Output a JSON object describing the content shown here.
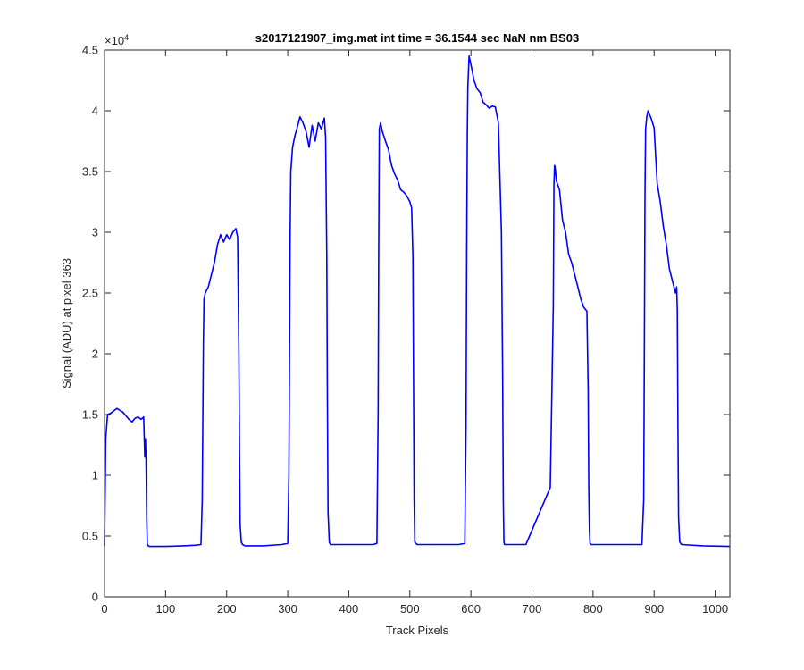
{
  "chart_data": {
    "type": "line",
    "title": "s2017121907_img.mat int time = 36.1544 sec  NaN nm BS03",
    "xlabel": "Track Pixels",
    "ylabel": "Signal (ADU) at pixel 363",
    "xlim": [
      0,
      1024
    ],
    "ylim": [
      0,
      45000
    ],
    "y_exponent_label": "×10",
    "y_exponent_power": "4",
    "xticks": [
      0,
      100,
      200,
      300,
      400,
      500,
      600,
      700,
      800,
      900,
      1000
    ],
    "xtick_labels": [
      "0",
      "100",
      "200",
      "300",
      "400",
      "500",
      "600",
      "700",
      "800",
      "900",
      "1000"
    ],
    "yticks": [
      0,
      5000,
      10000,
      15000,
      20000,
      25000,
      30000,
      35000,
      40000,
      45000
    ],
    "ytick_labels": [
      "0",
      "0.5",
      "1",
      "1.5",
      "2",
      "2.5",
      "3",
      "3.5",
      "4",
      "4.5"
    ],
    "grid": false,
    "series": [
      {
        "color": "#0000ff",
        "x": [
          0,
          2,
          5,
          10,
          20,
          30,
          40,
          45,
          50,
          55,
          60,
          64,
          66,
          67,
          68,
          69,
          70,
          72,
          74,
          80,
          100,
          130,
          150,
          158,
          160,
          161,
          162,
          163,
          165,
          170,
          175,
          180,
          185,
          190,
          195,
          200,
          205,
          210,
          215,
          218,
          220,
          221,
          222,
          224,
          226,
          230,
          260,
          290,
          300,
          302,
          303,
          304,
          305,
          308,
          312,
          315,
          320,
          325,
          330,
          335,
          340,
          345,
          350,
          355,
          360,
          362,
          364,
          365,
          366,
          368,
          370,
          400,
          440,
          446,
          448,
          449,
          450,
          452,
          455,
          460,
          465,
          470,
          475,
          480,
          485,
          490,
          495,
          500,
          503,
          505,
          506,
          507,
          508,
          510,
          512,
          540,
          580,
          590,
          592,
          593,
          594,
          595,
          597,
          600,
          605,
          610,
          615,
          620,
          625,
          630,
          635,
          640,
          645,
          650,
          652,
          653,
          654,
          655,
          657,
          660,
          690,
          730,
          735,
          736,
          737,
          738,
          740,
          745,
          750,
          755,
          760,
          765,
          770,
          775,
          780,
          785,
          790,
          792,
          793,
          794,
          795,
          797,
          800,
          840,
          880,
          883,
          884,
          885,
          886,
          888,
          890,
          895,
          900,
          905,
          910,
          915,
          920,
          925,
          930,
          935,
          937,
          938,
          939,
          940,
          942,
          945,
          980,
          1024
        ],
        "y": [
          4200,
          13000,
          15000,
          15100,
          15500,
          15200,
          14600,
          14400,
          14700,
          14800,
          14600,
          14800,
          11500,
          13000,
          11200,
          6500,
          4300,
          4200,
          4150,
          4150,
          4150,
          4200,
          4250,
          4300,
          8000,
          15000,
          21000,
          24500,
          25000,
          25500,
          26500,
          27500,
          29000,
          29800,
          29200,
          29800,
          29400,
          30000,
          30300,
          29600,
          20000,
          12000,
          6000,
          4500,
          4300,
          4200,
          4200,
          4300,
          4400,
          10000,
          20000,
          30000,
          35000,
          37000,
          38000,
          38500,
          39500,
          39000,
          38300,
          37000,
          38800,
          37500,
          39000,
          38500,
          39400,
          37800,
          28000,
          16000,
          7000,
          4500,
          4300,
          4300,
          4300,
          4400,
          15000,
          28000,
          38500,
          39000,
          38300,
          37500,
          36800,
          35500,
          34800,
          34300,
          33500,
          33300,
          33000,
          32500,
          32000,
          28000,
          18000,
          8000,
          4500,
          4400,
          4300,
          4300,
          4300,
          4400,
          14000,
          28000,
          38000,
          42000,
          44500,
          43800,
          42500,
          41800,
          41500,
          40700,
          40500,
          40200,
          40400,
          40300,
          39000,
          30000,
          18000,
          8000,
          4500,
          4300,
          4300,
          4300,
          4300,
          9000,
          24000,
          34000,
          35500,
          35300,
          34200,
          33500,
          31000,
          30000,
          28200,
          27500,
          26500,
          25500,
          24500,
          23800,
          23500,
          17000,
          9000,
          5500,
          4400,
          4300,
          4300,
          4300,
          4300,
          8000,
          20000,
          33000,
          38500,
          39500,
          40000,
          39400,
          38600,
          34000,
          32500,
          30500,
          29000,
          27000,
          26000,
          25000,
          25500,
          23500,
          14000,
          6500,
          4500,
          4300,
          4200,
          4150
        ]
      }
    ]
  }
}
